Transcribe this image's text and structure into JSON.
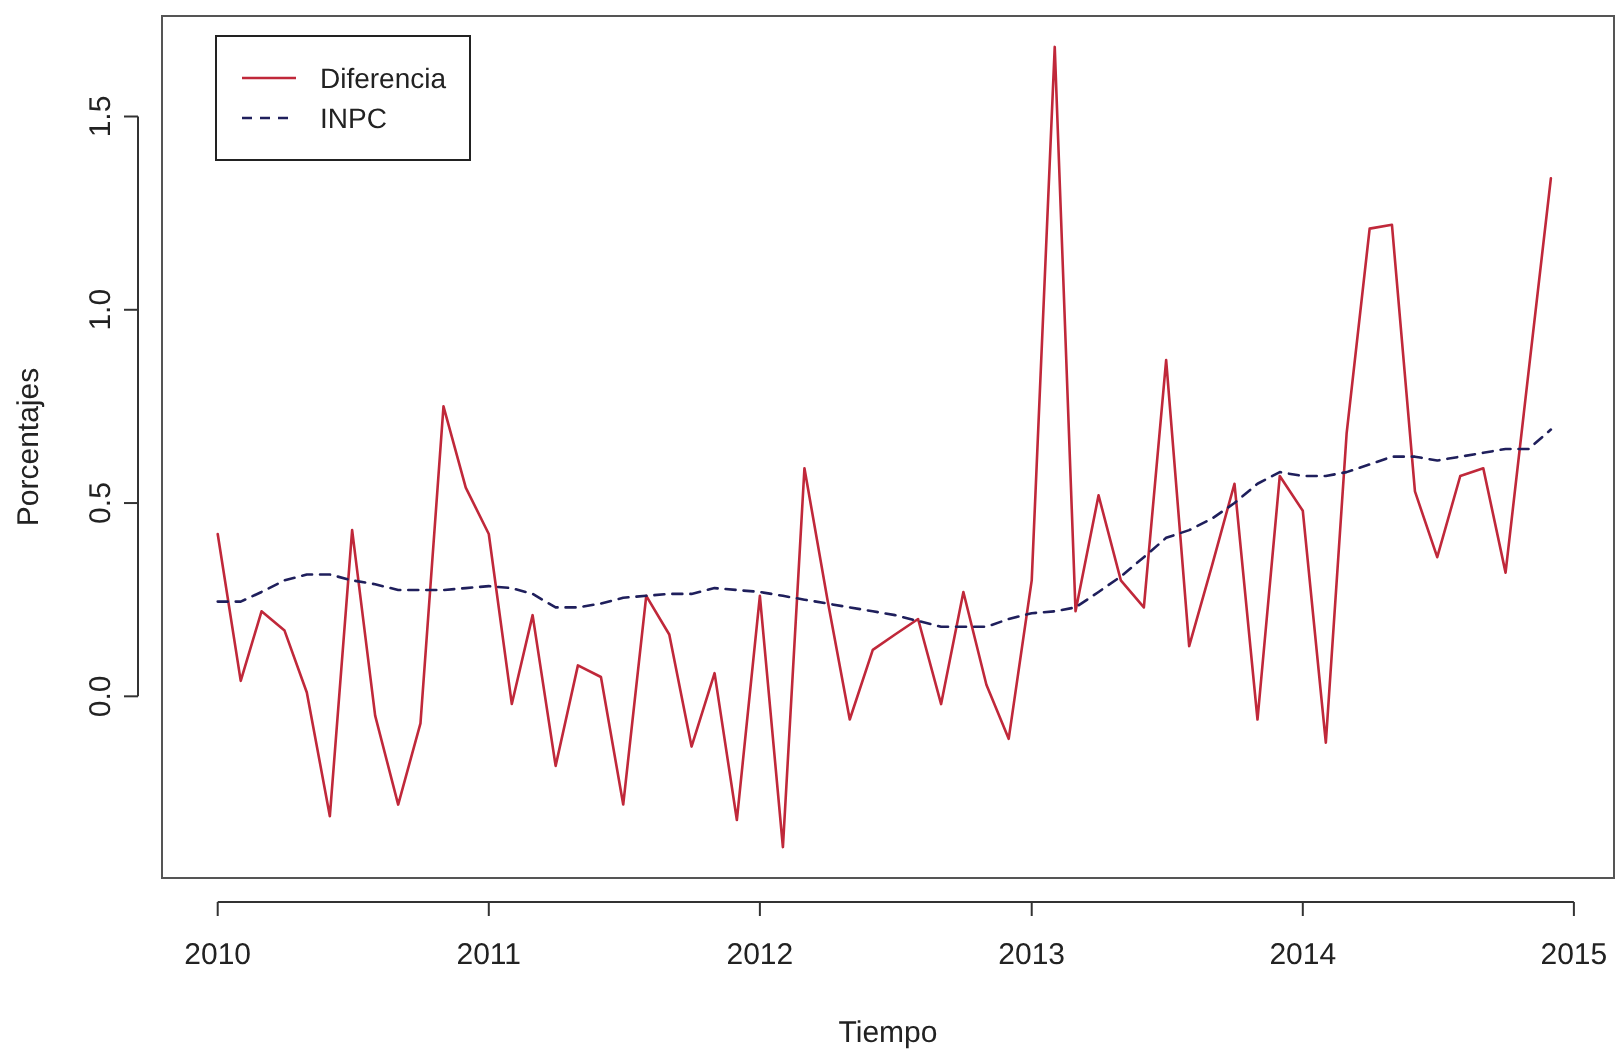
{
  "chart_data": {
    "type": "line",
    "xlabel": "Tiempo",
    "ylabel": "Porcentajes",
    "x": [
      "2010-01",
      "2010-02",
      "2010-03",
      "2010-04",
      "2010-05",
      "2010-06",
      "2010-07",
      "2010-08",
      "2010-09",
      "2010-10",
      "2010-11",
      "2010-12",
      "2011-01",
      "2011-02",
      "2011-03",
      "2011-04",
      "2011-05",
      "2011-06",
      "2011-07",
      "2011-08",
      "2011-09",
      "2011-10",
      "2011-11",
      "2011-12",
      "2012-01",
      "2012-02",
      "2012-03",
      "2012-04",
      "2012-05",
      "2012-06",
      "2012-07",
      "2012-08",
      "2012-09",
      "2012-10",
      "2012-11",
      "2012-12",
      "2013-01",
      "2013-02",
      "2013-03",
      "2013-04",
      "2013-05",
      "2013-06",
      "2013-07",
      "2013-08",
      "2013-09",
      "2013-10",
      "2013-11",
      "2013-12",
      "2014-01",
      "2014-02",
      "2014-03",
      "2014-04",
      "2014-05",
      "2014-06",
      "2014-07",
      "2014-08",
      "2014-09",
      "2014-10",
      "2014-11",
      "2014-12"
    ],
    "series": [
      {
        "name": "Diferencia",
        "color": "#c0283a",
        "line_style": "solid",
        "values": [
          0.42,
          0.04,
          0.22,
          0.17,
          0.01,
          -0.31,
          0.43,
          -0.05,
          -0.28,
          -0.07,
          0.75,
          0.54,
          0.42,
          -0.02,
          0.21,
          -0.18,
          0.08,
          0.05,
          -0.28,
          0.26,
          0.16,
          -0.13,
          0.06,
          -0.32,
          0.26,
          -0.39,
          0.59,
          0.25,
          -0.06,
          0.12,
          0.16,
          0.2,
          -0.02,
          0.27,
          0.03,
          -0.11,
          0.3,
          1.68,
          0.22,
          0.52,
          0.3,
          0.23,
          0.87,
          0.13,
          0.34,
          0.55,
          -0.06,
          0.57,
          0.48,
          -0.12,
          0.68,
          1.21,
          1.22,
          0.53,
          0.36,
          0.57,
          0.59,
          0.32,
          0.84,
          1.34
        ]
      },
      {
        "name": "INPC",
        "color": "#1f1f5c",
        "line_style": "dashed",
        "values": [
          0.245,
          0.245,
          0.27,
          0.3,
          0.315,
          0.315,
          0.3,
          0.29,
          0.275,
          0.275,
          0.275,
          0.28,
          0.285,
          0.28,
          0.265,
          0.23,
          0.23,
          0.24,
          0.255,
          0.26,
          0.265,
          0.265,
          0.28,
          0.275,
          0.27,
          0.26,
          0.25,
          0.24,
          0.23,
          0.22,
          0.21,
          0.195,
          0.18,
          0.18,
          0.18,
          0.2,
          0.215,
          0.22,
          0.23,
          0.27,
          0.31,
          0.36,
          0.41,
          0.43,
          0.46,
          0.5,
          0.55,
          0.58,
          0.57,
          0.57,
          0.58,
          0.6,
          0.62,
          0.62,
          0.61,
          0.62,
          0.63,
          0.64,
          0.64,
          0.69
        ]
      }
    ],
    "xlim": [
      "2009-10-18",
      "2015-02-24"
    ],
    "xticks": [
      {
        "value": "2010-01",
        "label": "2010"
      },
      {
        "value": "2011-01",
        "label": "2011"
      },
      {
        "value": "2012-01",
        "label": "2012"
      },
      {
        "value": "2013-01",
        "label": "2013"
      },
      {
        "value": "2014-01",
        "label": "2014"
      },
      {
        "value": "2015-01",
        "label": "2015"
      }
    ],
    "ylim": [
      -0.47,
      1.76
    ],
    "yticks": [
      {
        "value": 0,
        "label": "0.0"
      },
      {
        "value": 0.5,
        "label": "0.5"
      },
      {
        "value": 1,
        "label": "1.0"
      },
      {
        "value": 1.5,
        "label": "1.5"
      }
    ],
    "legend": "top left",
    "grid": false
  }
}
